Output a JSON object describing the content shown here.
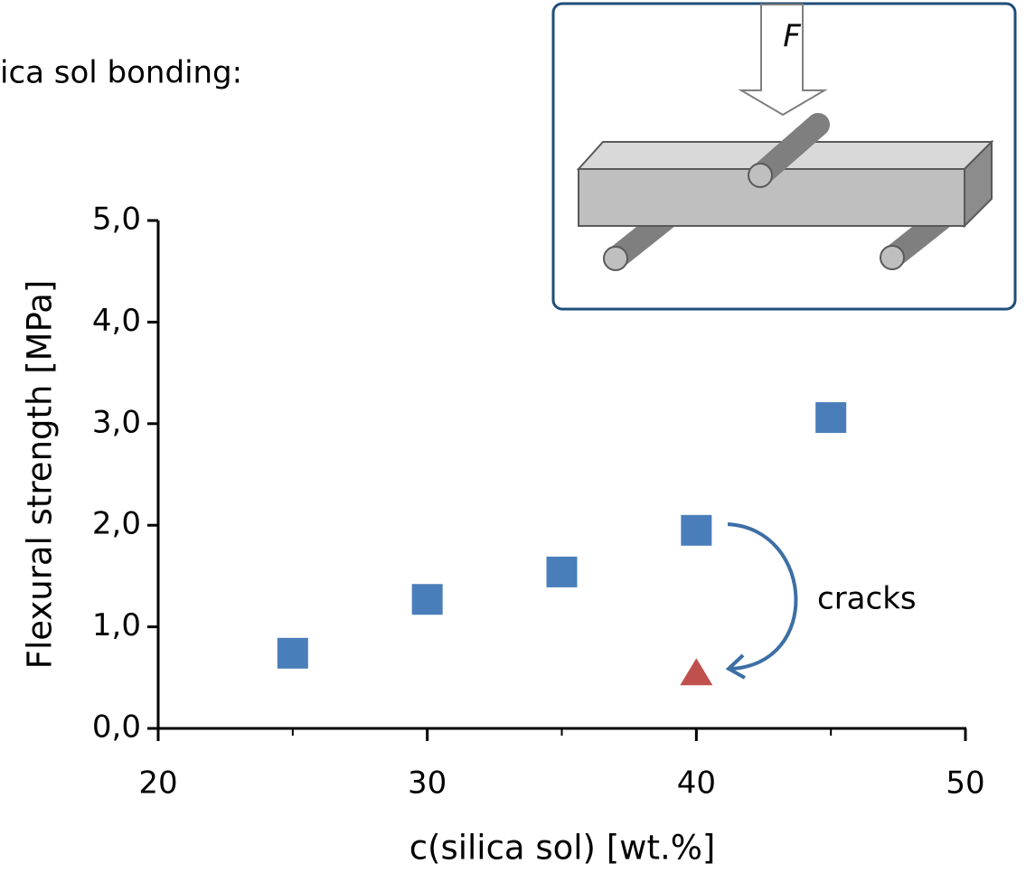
{
  "chart_data": {
    "type": "scatter",
    "title": "ica sol bonding:",
    "xlabel": "c(silica sol) [wt.%]",
    "ylabel": "Flexural strength [MPa]",
    "xlim": [
      20,
      50
    ],
    "xticks": [
      20,
      30,
      40,
      50
    ],
    "xminorticks": [
      25,
      35,
      45
    ],
    "ylim": [
      0,
      5
    ],
    "yticks": [
      {
        "value": 0,
        "label": "0,0"
      },
      {
        "value": 1,
        "label": "1,0"
      },
      {
        "value": 2,
        "label": "2,0"
      },
      {
        "value": 3,
        "label": "3,0"
      },
      {
        "value": 4,
        "label": "4,0"
      },
      {
        "value": 5,
        "label": "5,0"
      }
    ],
    "series": [
      {
        "color": "#4a7ebb",
        "marker": "square",
        "x": [
          25,
          30,
          35,
          40,
          45
        ],
        "values": [
          0.74,
          1.27,
          1.54,
          1.95,
          3.06
        ]
      },
      {
        "color": "#c0504d",
        "marker": "triangle",
        "x": [
          40
        ],
        "values": [
          0.54
        ]
      }
    ],
    "annotation": "cracks"
  },
  "inset": {
    "label": "F"
  }
}
